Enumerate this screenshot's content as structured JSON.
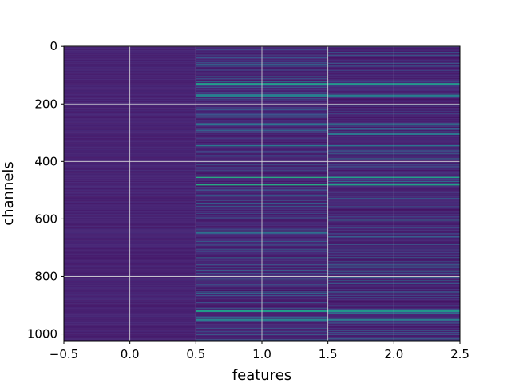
{
  "chart_data": {
    "type": "heatmap",
    "title": "",
    "xlabel": "features",
    "ylabel": "channels",
    "xlim": [
      -0.5,
      2.5
    ],
    "ylim": [
      1023.5,
      -0.5
    ],
    "y_inverted": true,
    "grid": true,
    "colormap": "viridis",
    "n_columns": 3,
    "n_rows": 1024,
    "x_ticks": [
      -0.5,
      0.0,
      0.5,
      1.0,
      1.5,
      2.0,
      2.5
    ],
    "x_tick_labels": [
      "−0.5",
      "0.0",
      "0.5",
      "1.0",
      "1.5",
      "2.0",
      "2.5"
    ],
    "y_ticks": [
      0,
      200,
      400,
      600,
      800,
      1000
    ],
    "y_tick_labels": [
      "0",
      "200",
      "400",
      "600",
      "800",
      "1000"
    ],
    "columns": [
      {
        "x": 0,
        "intensity": "very low, nearly uniform"
      },
      {
        "x": 1,
        "intensity": "low with many brighter channel streaks"
      },
      {
        "x": 2,
        "intensity": "low with many brighter channel streaks"
      }
    ],
    "highlighted_channels": [
      {
        "channel": 130,
        "intensity": 0.55
      },
      {
        "channel": 170,
        "intensity": 0.45
      },
      {
        "channel": 270,
        "intensity": 0.45
      },
      {
        "channel": 345,
        "intensity": 0.4
      },
      {
        "channel": 455,
        "intensity": 0.6
      },
      {
        "channel": 480,
        "intensity": 0.6
      },
      {
        "channel": 920,
        "intensity": 0.55
      },
      {
        "channel": 950,
        "intensity": 0.45
      }
    ]
  }
}
